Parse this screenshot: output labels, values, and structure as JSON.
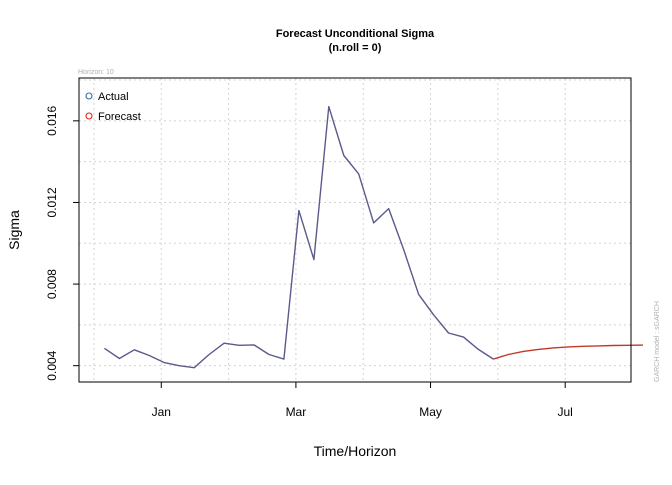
{
  "chart_data": {
    "type": "line",
    "title": "Forecast Unconditional Sigma",
    "subtitle": "(n.roll = 0)",
    "xlabel": "Time/Horizon",
    "ylabel": "Sigma",
    "annotation_topleft": "Horizon: 10",
    "annotation_right": "GARCH model : sGARCH",
    "x_tick_labels": [
      "Jan",
      "Mar",
      "May",
      "Jul"
    ],
    "y_tick_labels": [
      "0.004",
      "0.008",
      "0.012",
      "0.016"
    ],
    "x_tick_index": [
      3.8,
      12.8,
      21.8,
      30.8
    ],
    "y_ticks": [
      0.004,
      0.008,
      0.012,
      0.016
    ],
    "xlim": [
      -1.7,
      35.2
    ],
    "ylim": [
      0.0032,
      0.0181
    ],
    "grid": true,
    "legend_position": "top-left",
    "series": [
      {
        "name": "Actual",
        "color": "#5a5a8c",
        "legend_marker_color": "#2c6ea8",
        "x": [
          0,
          1,
          2,
          3,
          4,
          5,
          6,
          7,
          8,
          9,
          10,
          11,
          12,
          13,
          14,
          15,
          16,
          17,
          18,
          19,
          20,
          21,
          22,
          23,
          24,
          25,
          26
        ],
        "values": [
          0.00485,
          0.00435,
          0.00478,
          0.0045,
          0.00415,
          0.004,
          0.0039,
          0.00455,
          0.0051,
          0.005,
          0.00502,
          0.00455,
          0.00432,
          0.0116,
          0.0092,
          0.0167,
          0.0143,
          0.0134,
          0.011,
          0.0117,
          0.0097,
          0.0075,
          0.0065,
          0.0056,
          0.0054,
          0.0048,
          0.00432
        ]
      },
      {
        "name": "Forecast",
        "color": "#c0392b",
        "legend_marker_color": "#e02020",
        "x": [
          26,
          27,
          28,
          29,
          30,
          31,
          32,
          33,
          34,
          35,
          36
        ],
        "values": [
          0.00432,
          0.00455,
          0.0047,
          0.0048,
          0.00487,
          0.00492,
          0.00495,
          0.00497,
          0.00499,
          0.005,
          0.00501
        ]
      }
    ]
  }
}
